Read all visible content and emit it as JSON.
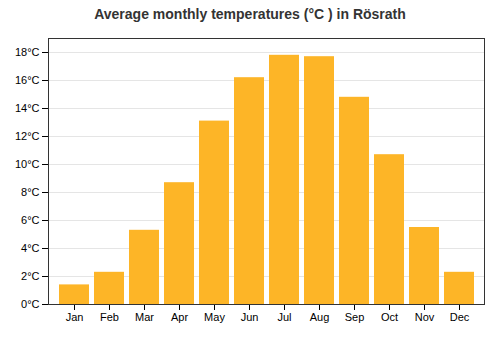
{
  "chart_data": {
    "type": "bar",
    "title": "Average monthly temperatures (°C ) in Rösrath",
    "categories": [
      "Jan",
      "Feb",
      "Mar",
      "Apr",
      "May",
      "Jun",
      "Jul",
      "Aug",
      "Sep",
      "Oct",
      "Nov",
      "Dec"
    ],
    "values": [
      1.4,
      2.3,
      5.3,
      8.7,
      13.1,
      16.2,
      17.8,
      17.7,
      14.8,
      10.7,
      5.5,
      2.3
    ],
    "color": "#FDB527",
    "ylim": [
      0,
      19
    ],
    "yticks": [
      {
        "value": 0,
        "label": "0°C"
      },
      {
        "value": 2,
        "label": "2°C"
      },
      {
        "value": 4,
        "label": "4°C"
      },
      {
        "value": 6,
        "label": "6°C"
      },
      {
        "value": 8,
        "label": "8°C"
      },
      {
        "value": 10,
        "label": "10°C"
      },
      {
        "value": 12,
        "label": "12°C"
      },
      {
        "value": 14,
        "label": "14°C"
      },
      {
        "value": 16,
        "label": "16°C"
      },
      {
        "value": 18,
        "label": "18°C"
      }
    ],
    "grid": true
  }
}
